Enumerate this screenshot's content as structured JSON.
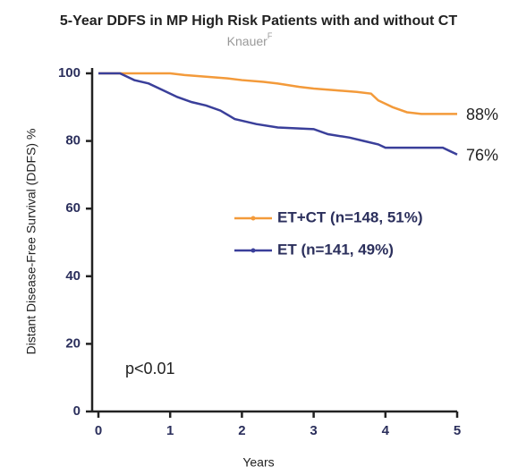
{
  "chart_data": {
    "type": "line",
    "title": "5-Year DDFS in MP High Risk Patients with and without CT",
    "subtitle": "Knauer",
    "subtitle_superscript": "F",
    "x_label": "Years",
    "y_label": "Distant Disease-Free Survival (DDFS) %",
    "annotation": "p<0.01",
    "xlim": [
      0,
      5
    ],
    "xticks": [
      0,
      1,
      2,
      3,
      4,
      5
    ],
    "ylim": [
      0,
      100
    ],
    "yticks": [
      0,
      20,
      40,
      60,
      80,
      100
    ],
    "series": [
      {
        "name": "ET+CT (n=148, 51%)",
        "color": "#f39a3a",
        "end_label": "88%",
        "x": [
          0,
          0.5,
          0.8,
          1.0,
          1.2,
          1.5,
          1.8,
          2.0,
          2.3,
          2.5,
          2.8,
          3.0,
          3.3,
          3.6,
          3.8,
          3.9,
          4.0,
          4.1,
          4.3,
          4.5,
          4.8,
          5.0
        ],
        "values": [
          100,
          100,
          100,
          100,
          99.5,
          99,
          98.5,
          98,
          97.5,
          97,
          96,
          95.5,
          95,
          94.5,
          94,
          92,
          91,
          90,
          88.5,
          88,
          88,
          88
        ]
      },
      {
        "name": "ET (n=141, 49%)",
        "color": "#3a3f9a",
        "end_label": "76%",
        "x": [
          0,
          0.3,
          0.4,
          0.5,
          0.7,
          0.9,
          1.1,
          1.3,
          1.5,
          1.7,
          1.9,
          2.0,
          2.2,
          2.5,
          3.0,
          3.2,
          3.5,
          3.7,
          3.9,
          4.0,
          4.5,
          4.8,
          4.9,
          5.0
        ],
        "values": [
          100,
          100,
          99,
          98,
          97,
          95,
          93,
          91.5,
          90.5,
          89,
          86.5,
          86,
          85,
          84,
          83.5,
          82,
          81,
          80,
          79,
          78,
          78,
          78,
          77,
          76
        ]
      }
    ]
  }
}
